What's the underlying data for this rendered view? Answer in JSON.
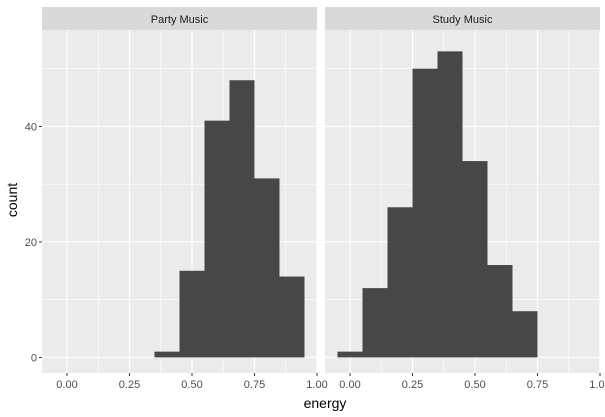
{
  "chart_data": {
    "type": "bar",
    "subtype": "faceted-histogram",
    "title": "",
    "xlabel": "energy",
    "ylabel": "count",
    "xlim": [
      -0.1,
      1.0
    ],
    "ylim": [
      -2.7,
      56.7
    ],
    "x_ticks": [
      0.0,
      0.25,
      0.5,
      0.75,
      1.0
    ],
    "x_tick_labels": [
      "0.00",
      "0.25",
      "0.50",
      "0.75",
      "1.00"
    ],
    "y_ticks": [
      0,
      20,
      40
    ],
    "y_tick_labels": [
      "0",
      "20",
      "40"
    ],
    "bin_width": 0.1,
    "grid": true,
    "colors": {
      "panel_bg": "#ebebeb",
      "grid": "#ffffff",
      "bar": "#474747",
      "strip_bg": "#d9d9d9"
    },
    "panels": [
      {
        "name": "Party Music",
        "bins": [
          {
            "x0": 0.35,
            "x1": 0.45,
            "count": 1
          },
          {
            "x0": 0.45,
            "x1": 0.55,
            "count": 15
          },
          {
            "x0": 0.55,
            "x1": 0.65,
            "count": 41
          },
          {
            "x0": 0.65,
            "x1": 0.75,
            "count": 48
          },
          {
            "x0": 0.75,
            "x1": 0.85,
            "count": 31
          },
          {
            "x0": 0.85,
            "x1": 0.95,
            "count": 14
          }
        ]
      },
      {
        "name": "Study Music",
        "bins": [
          {
            "x0": -0.05,
            "x1": 0.05,
            "count": 1
          },
          {
            "x0": 0.05,
            "x1": 0.15,
            "count": 12
          },
          {
            "x0": 0.15,
            "x1": 0.25,
            "count": 26
          },
          {
            "x0": 0.25,
            "x1": 0.35,
            "count": 50
          },
          {
            "x0": 0.35,
            "x1": 0.45,
            "count": 53
          },
          {
            "x0": 0.45,
            "x1": 0.55,
            "count": 34
          },
          {
            "x0": 0.55,
            "x1": 0.65,
            "count": 16
          },
          {
            "x0": 0.65,
            "x1": 0.75,
            "count": 8
          }
        ]
      }
    ]
  }
}
